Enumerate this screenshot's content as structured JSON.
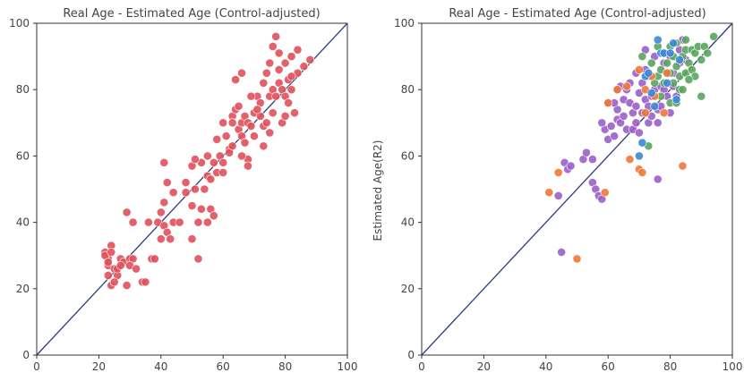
{
  "colors": {
    "red": "#e0505a",
    "purple": "#9a5fc8",
    "green": "#5aa55f",
    "orange": "#f07838",
    "blue": "#3b88d6",
    "diagonal": "#2c3a7c",
    "frame": "#333333",
    "text": "#444444"
  },
  "chart_data": [
    {
      "type": "scatter",
      "title": "Real Age - Estimated Age (Control-adjusted)",
      "xlabel": "",
      "ylabel": "",
      "xlim": [
        0,
        100
      ],
      "ylim": [
        0,
        100
      ],
      "xticks": [
        "0",
        "20",
        "40",
        "60",
        "80",
        "100"
      ],
      "yticks": [
        "0",
        "20",
        "40",
        "60",
        "80",
        "100"
      ],
      "reference_line": "y = x",
      "legend": "none",
      "series": [
        {
          "color": "red",
          "points": [
            [
              22,
              31
            ],
            [
              23,
              29
            ],
            [
              23,
              27
            ],
            [
              24,
              33
            ],
            [
              23,
              24
            ],
            [
              24,
              21
            ],
            [
              22,
              30
            ],
            [
              23,
              28
            ],
            [
              25,
              26
            ],
            [
              26,
              24
            ],
            [
              27,
              29
            ],
            [
              28,
              28
            ],
            [
              25,
              22
            ],
            [
              26,
              26
            ],
            [
              24,
              31
            ],
            [
              27,
              27
            ],
            [
              29,
              21
            ],
            [
              30,
              29
            ],
            [
              31,
              29
            ],
            [
              30,
              27
            ],
            [
              32,
              26
            ],
            [
              34,
              22
            ],
            [
              35,
              22
            ],
            [
              37,
              29
            ],
            [
              38,
              29
            ],
            [
              29,
              43
            ],
            [
              31,
              40
            ],
            [
              36,
              40
            ],
            [
              39,
              40
            ],
            [
              40,
              43
            ],
            [
              41,
              46
            ],
            [
              41,
              39
            ],
            [
              40,
              35
            ],
            [
              42,
              37
            ],
            [
              44,
              40
            ],
            [
              42,
              52
            ],
            [
              43,
              35
            ],
            [
              41,
              58
            ],
            [
              44,
              49
            ],
            [
              46,
              40
            ],
            [
              48,
              52
            ],
            [
              50,
              57
            ],
            [
              48,
              49
            ],
            [
              50,
              45
            ],
            [
              51,
              50
            ],
            [
              52,
              40
            ],
            [
              53,
              58
            ],
            [
              51,
              59
            ],
            [
              52,
              29
            ],
            [
              53,
              44
            ],
            [
              55,
              60
            ],
            [
              54,
              50
            ],
            [
              56,
              44
            ],
            [
              55,
              54
            ],
            [
              57,
              58
            ],
            [
              56,
              53
            ],
            [
              58,
              55
            ],
            [
              58,
              65
            ],
            [
              59,
              60
            ],
            [
              60,
              58
            ],
            [
              60,
              70
            ],
            [
              61,
              66
            ],
            [
              62,
              62
            ],
            [
              62,
              61
            ],
            [
              63,
              72
            ],
            [
              64,
              74
            ],
            [
              65,
              68
            ],
            [
              66,
              66
            ],
            [
              66,
              70
            ],
            [
              67,
              72
            ],
            [
              67,
              64
            ],
            [
              68,
              70
            ],
            [
              68,
              59
            ],
            [
              69,
              69
            ],
            [
              70,
              73
            ],
            [
              70,
              66
            ],
            [
              71,
              78
            ],
            [
              72,
              76
            ],
            [
              72,
              72
            ],
            [
              73,
              63
            ],
            [
              73,
              69
            ],
            [
              74,
              70
            ],
            [
              75,
              78
            ],
            [
              75,
              67
            ],
            [
              76,
              80
            ],
            [
              76,
              73
            ],
            [
              77,
              78
            ],
            [
              77,
              96
            ],
            [
              78,
              82
            ],
            [
              78,
              91
            ],
            [
              79,
              70
            ],
            [
              79,
              80
            ],
            [
              80,
              78
            ],
            [
              80,
              72
            ],
            [
              81,
              83
            ],
            [
              81,
              76
            ],
            [
              82,
              90
            ],
            [
              82,
              80
            ],
            [
              83,
              73
            ],
            [
              84,
              92
            ],
            [
              84,
              85
            ],
            [
              86,
              87
            ],
            [
              88,
              89
            ],
            [
              73,
              82
            ],
            [
              74,
              85
            ],
            [
              75,
              88
            ],
            [
              76,
              93
            ],
            [
              78,
              86
            ],
            [
              80,
              88
            ],
            [
              82,
              84
            ],
            [
              66,
              85
            ],
            [
              64,
              83
            ],
            [
              65,
              75
            ],
            [
              69,
              78
            ],
            [
              71,
              74
            ],
            [
              66,
              60
            ],
            [
              63,
              63
            ],
            [
              68,
              57
            ],
            [
              63,
              70
            ],
            [
              60,
              55
            ],
            [
              57,
              42
            ],
            [
              55,
              40
            ],
            [
              50,
              35
            ]
          ]
        }
      ]
    },
    {
      "type": "scatter",
      "title": "Real Age - Estimated Age (Control-adjusted)",
      "xlabel": "",
      "ylabel": "Estimated Age(R2)",
      "xlim": [
        0,
        100
      ],
      "ylim": [
        0,
        100
      ],
      "xticks": [
        "0",
        "20",
        "40",
        "60",
        "80",
        "100"
      ],
      "yticks": [
        "0",
        "20",
        "40",
        "60",
        "80",
        "100"
      ],
      "reference_line": "y = x",
      "legend": "none",
      "series": [
        {
          "color": "purple",
          "points": [
            [
              45,
              31
            ],
            [
              44,
              48
            ],
            [
              46,
              58
            ],
            [
              47,
              56
            ],
            [
              48,
              57
            ],
            [
              52,
              59
            ],
            [
              53,
              61
            ],
            [
              55,
              59
            ],
            [
              55,
              52
            ],
            [
              56,
              50
            ],
            [
              57,
              48
            ],
            [
              58,
              47
            ],
            [
              59,
              68
            ],
            [
              60,
              65
            ],
            [
              61,
              69
            ],
            [
              62,
              66
            ],
            [
              63,
              71
            ],
            [
              63,
              74
            ],
            [
              64,
              70
            ],
            [
              65,
              77
            ],
            [
              65,
              72
            ],
            [
              66,
              68
            ],
            [
              66,
              80
            ],
            [
              67,
              76
            ],
            [
              68,
              73
            ],
            [
              68,
              68
            ],
            [
              69,
              70
            ],
            [
              69,
              75
            ],
            [
              70,
              79
            ],
            [
              70,
              67
            ],
            [
              71,
              73
            ],
            [
              71,
              82
            ],
            [
              72,
              86
            ],
            [
              72,
              77
            ],
            [
              72,
              92
            ],
            [
              73,
              70
            ],
            [
              73,
              75
            ],
            [
              73,
              84
            ],
            [
              74,
              78
            ],
            [
              74,
              72
            ],
            [
              75,
              80
            ],
            [
              75,
              90
            ],
            [
              76,
              74
            ],
            [
              76,
              70
            ],
            [
              76,
              53
            ],
            [
              77,
              81
            ],
            [
              77,
              75
            ],
            [
              78,
              80
            ],
            [
              78,
              88
            ],
            [
              79,
              85
            ],
            [
              79,
              78
            ],
            [
              80,
              90
            ],
            [
              80,
              73
            ],
            [
              81,
              85
            ],
            [
              81,
              81
            ],
            [
              82,
              78
            ],
            [
              83,
              92
            ],
            [
              83,
              88
            ],
            [
              84,
              95
            ],
            [
              85,
              89
            ],
            [
              60,
              76
            ],
            [
              58,
              70
            ],
            [
              62,
              76
            ],
            [
              64,
              81
            ],
            [
              67,
              82
            ],
            [
              69,
              85
            ],
            [
              63,
              80
            ]
          ]
        },
        {
          "color": "green",
          "points": [
            [
              73,
              63
            ],
            [
              75,
              82
            ],
            [
              76,
              84
            ],
            [
              77,
              86
            ],
            [
              78,
              91
            ],
            [
              79,
              88
            ],
            [
              80,
              85
            ],
            [
              80,
              93
            ],
            [
              81,
              90
            ],
            [
              81,
              82
            ],
            [
              82,
              87
            ],
            [
              82,
              94
            ],
            [
              83,
              84
            ],
            [
              83,
              80
            ],
            [
              84,
              90
            ],
            [
              85,
              92
            ],
            [
              85,
              85
            ],
            [
              86,
              88
            ],
            [
              87,
              86
            ],
            [
              87,
              92
            ],
            [
              88,
              91
            ],
            [
              88,
              84
            ],
            [
              89,
              93
            ],
            [
              90,
              78
            ],
            [
              90,
              89
            ],
            [
              91,
              93
            ],
            [
              92,
              91
            ],
            [
              94,
              96
            ],
            [
              76,
              93
            ],
            [
              78,
              82
            ],
            [
              80,
              76
            ],
            [
              82,
              76
            ],
            [
              84,
              80
            ],
            [
              86,
              83
            ],
            [
              71,
              90
            ],
            [
              74,
              88
            ],
            [
              77,
              78
            ],
            [
              85,
              95
            ]
          ]
        },
        {
          "color": "orange",
          "points": [
            [
              41,
              49
            ],
            [
              44,
              55
            ],
            [
              50,
              29
            ],
            [
              59,
              49
            ],
            [
              63,
              80
            ],
            [
              66,
              81
            ],
            [
              70,
              56
            ],
            [
              71,
              55
            ],
            [
              72,
              73
            ],
            [
              74,
              84
            ],
            [
              75,
              78
            ],
            [
              78,
              73
            ],
            [
              79,
              85
            ],
            [
              84,
              57
            ],
            [
              60,
              76
            ],
            [
              67,
              59
            ],
            [
              72,
              80
            ],
            [
              70,
              86
            ]
          ]
        },
        {
          "color": "blue",
          "points": [
            [
              70,
              60
            ],
            [
              71,
              64
            ],
            [
              72,
              84
            ],
            [
              74,
              79
            ],
            [
              76,
              95
            ],
            [
              77,
              91
            ],
            [
              78,
              91
            ],
            [
              80,
              91
            ],
            [
              81,
              94
            ],
            [
              83,
              89
            ],
            [
              79,
              82
            ],
            [
              73,
              85
            ],
            [
              82,
              77
            ],
            [
              75,
              75
            ]
          ]
        }
      ]
    }
  ]
}
